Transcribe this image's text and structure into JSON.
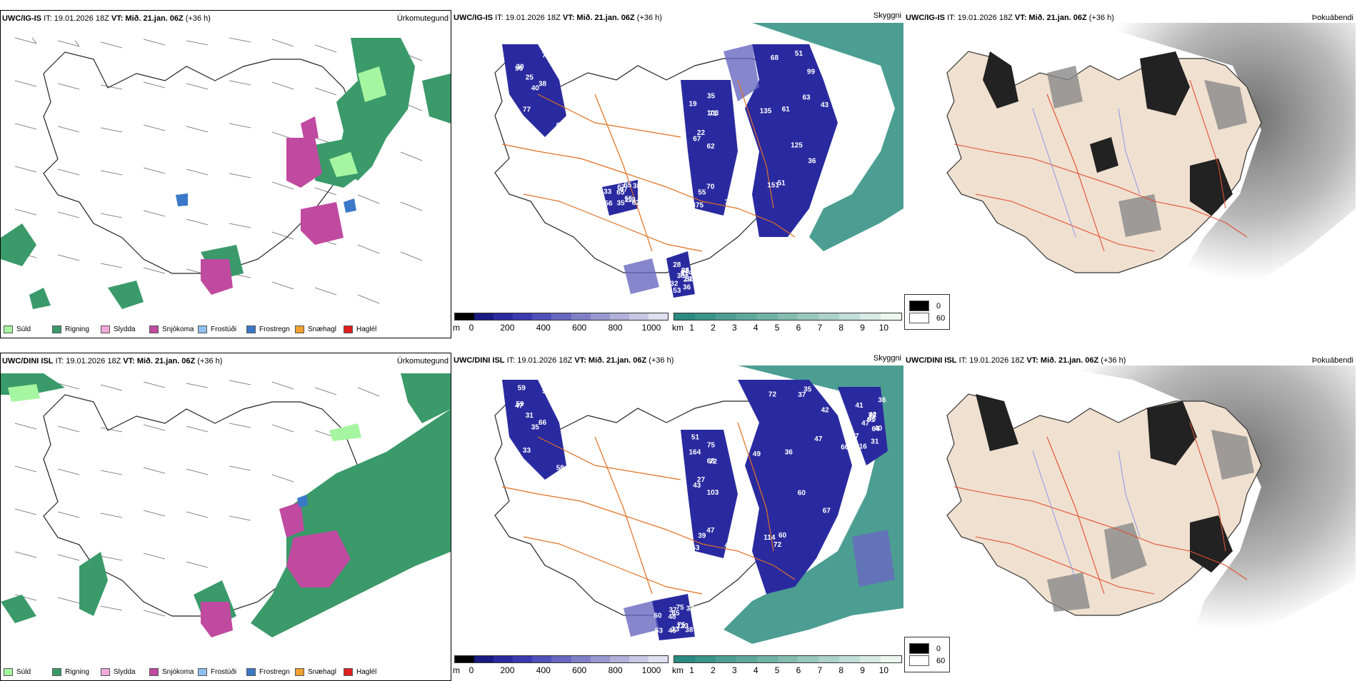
{
  "rows": [
    {
      "model": "UWC/IG-IS",
      "init": "IT: 19.01.2026 18Z",
      "valid_label": "VT:",
      "valid": "Mið. 21.jan. 06Z",
      "lead": "(+36 h)"
    },
    {
      "model": "UWC/DINI ISL",
      "init": "IT: 19.01.2026 18Z",
      "valid_label": "VT:",
      "valid": "Mið. 21.jan. 06Z",
      "lead": "(+36 h)"
    }
  ],
  "panel_titles": {
    "precip": "Úrkomutegund",
    "visibility": "Skyggni",
    "cloud": "Þokuábendi"
  },
  "precip_legend": [
    {
      "label": "Súld",
      "color": "#a6f5a0"
    },
    {
      "label": "Rigning",
      "color": "#3a9a6a"
    },
    {
      "label": "Slydda",
      "color": "#f0a8d8"
    },
    {
      "label": "Snjókoma",
      "color": "#c04aa0"
    },
    {
      "label": "Frostúði",
      "color": "#90c0f0"
    },
    {
      "label": "Frostregn",
      "color": "#3a78c8"
    },
    {
      "label": "Snæhagl",
      "color": "#f0a030"
    },
    {
      "label": "Haglél",
      "color": "#e02020"
    }
  ],
  "visibility_scale_m": {
    "unit": "m",
    "ticks": [
      "0",
      "200",
      "400",
      "600",
      "800",
      "1000"
    ],
    "colors": [
      "#000000",
      "#1a1a80",
      "#2a2aa0",
      "#3a3ab0",
      "#5050b8",
      "#6868c0",
      "#8080c8",
      "#9898d0",
      "#b0b0d8",
      "#c8c8e4",
      "#e0e0f0"
    ]
  },
  "visibility_scale_km": {
    "unit": "km",
    "ticks": [
      "1",
      "2",
      "3",
      "4",
      "5",
      "6",
      "7",
      "8",
      "9",
      "10"
    ],
    "colors": [
      "#2a8a80",
      "#3a9488",
      "#4c9e92",
      "#5ea89c",
      "#70b2a6",
      "#84bcb0",
      "#98c8bc",
      "#acd2c8",
      "#c2ded6",
      "#d8eae4",
      "#eef6f2"
    ]
  },
  "cloud_legend": [
    {
      "label": "0",
      "color": "#000000"
    },
    {
      "label": "60",
      "color": "#ffffff"
    }
  ],
  "vis_labels_top": [
    "125",
    "96",
    "62",
    "56",
    "52",
    "51",
    "72",
    "71",
    "65",
    "51",
    "68",
    "67",
    "67",
    "38",
    "38",
    "63",
    "36",
    "103",
    "47",
    "32",
    "61",
    "61",
    "55",
    "67",
    "35",
    "36",
    "30",
    "35",
    "33",
    "29",
    "43",
    "40",
    "70",
    "65",
    "28",
    "99",
    "77",
    "73",
    "62",
    "51",
    "51",
    "25",
    "22",
    "113",
    "53",
    "135",
    "38",
    "375",
    "35",
    "114",
    "151",
    "16",
    "19",
    "55",
    "36"
  ],
  "vis_labels_bottom": [
    "60",
    "47",
    "103",
    "53",
    "79",
    "60",
    "57",
    "72",
    "75",
    "61",
    "72",
    "58",
    "43",
    "321",
    "47",
    "47",
    "68",
    "68",
    "65",
    "37",
    "36",
    "59",
    "39",
    "37",
    "42",
    "67",
    "59",
    "75",
    "60",
    "64",
    "66",
    "35",
    "47",
    "48",
    "41",
    "42",
    "33",
    "44",
    "38",
    "40",
    "35",
    "31",
    "27",
    "123",
    "116",
    "49",
    "66",
    "53",
    "45",
    "46",
    "114",
    "102",
    "164",
    "75",
    "31",
    "72",
    "59",
    "51",
    "33",
    "36",
    "37"
  ]
}
